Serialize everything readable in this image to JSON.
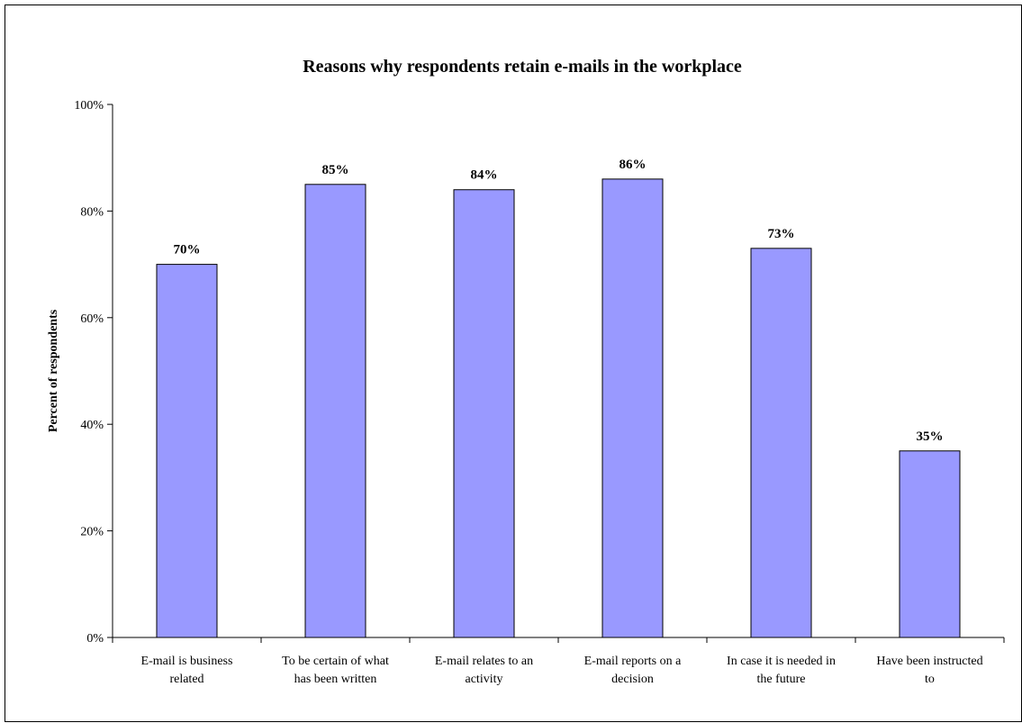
{
  "chart_data": {
    "type": "bar",
    "title": "Reasons why respondents retain e-mails in the workplace",
    "xlabel": "",
    "ylabel": "Percent of respondents",
    "ylim": [
      0,
      100
    ],
    "yticks": [
      0,
      20,
      40,
      60,
      80,
      100
    ],
    "ytick_labels": [
      "0%",
      "20%",
      "40%",
      "60%",
      "80%",
      "100%"
    ],
    "categories": [
      [
        "E-mail is business",
        "related"
      ],
      [
        "To be certain of what",
        "has been written"
      ],
      [
        "E-mail relates to an",
        "activity"
      ],
      [
        "E-mail reports on a",
        "decision"
      ],
      [
        "In case it is needed in",
        "the future"
      ],
      [
        "Have been instructed",
        "to"
      ]
    ],
    "values": [
      70,
      85,
      84,
      86,
      73,
      35
    ],
    "data_labels": [
      "70%",
      "85%",
      "84%",
      "86%",
      "73%",
      "35%"
    ],
    "bar_color": "#9999ff",
    "bar_edge_color": "#000000",
    "grid": false,
    "legend": "none"
  }
}
